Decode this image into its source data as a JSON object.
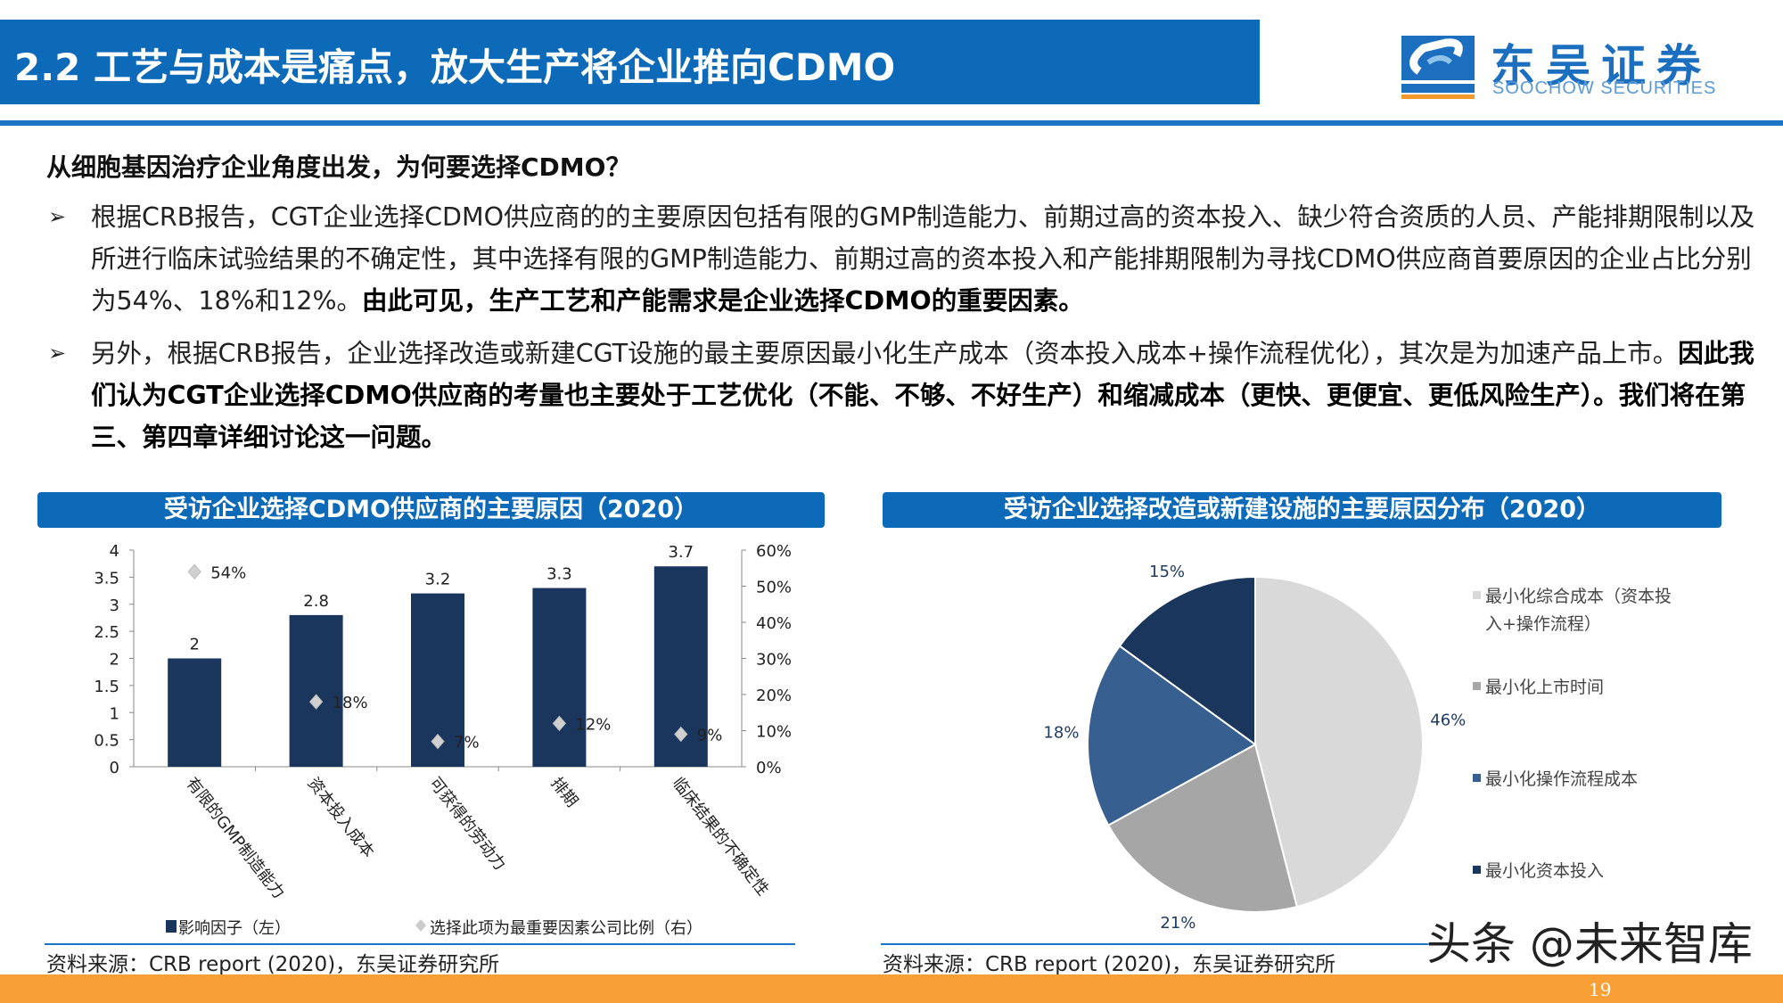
{
  "header": {
    "title": "2.2 工艺与成本是痛点，放大生产将企业推向CDMO",
    "logo_cn": "东吴证券",
    "logo_en": "SOOCHOW SECURITIES",
    "logo_mark": "SCS"
  },
  "question": "从细胞基因治疗企业角度出发，为何要选择CDMO？",
  "bullets": [
    {
      "normal": "根据CRB报告，CGT企业选择CDMO供应商的的主要原因包括有限的GMP制造能力、前期过高的资本投入、缺少符合资质的人员、产能排期限制以及所进行临床试验结果的不确定性，其中选择有限的GMP制造能力、前期过高的资本投入和产能排期限制为寻找CDMO供应商首要原因的企业占比分别为54%、18%和12%。",
      "bold": "由此可见，生产工艺和产能需求是企业选择CDMO的重要因素。"
    },
    {
      "normal": "另外，根据CRB报告，企业选择改造或新建CGT设施的最主要原因最小化生产成本（资本投入成本+操作流程优化），其次是为加速产品上市。",
      "bold": "因此我们认为CGT企业选择CDMO供应商的考量也主要处于工艺优化（不能、不够、不好生产）和缩减成本（更快、更便宜、更低风险生产）。我们将在第三、第四章详细讨论这一问题。"
    }
  ],
  "chart_data": [
    {
      "type": "bar",
      "title": "受访企业选择CDMO供应商的主要原因（2020）",
      "categories": [
        "有限的GMP制造能力",
        "资本投入成本",
        "可获得的劳动力",
        "排期",
        "临床结果的不确定性"
      ],
      "series": [
        {
          "name": "影响因子（左）",
          "axis": "left",
          "values": [
            2,
            2.8,
            3.2,
            3.3,
            3.7
          ],
          "labels": [
            "2",
            "2.8",
            "3.2",
            "3.3",
            "3.7"
          ],
          "color": "#1b365d"
        },
        {
          "name": "选择此项为最重要因素公司比例（右）",
          "axis": "right",
          "values": [
            54,
            18,
            7,
            12,
            9
          ],
          "labels": [
            "54%",
            "18%",
            "7%",
            "12%",
            "9%"
          ],
          "color": "#d0d0d0"
        }
      ],
      "ylim": [
        0,
        4
      ],
      "yticks": [
        "0",
        "0.5",
        "1",
        "1.5",
        "2",
        "2.5",
        "3",
        "3.5",
        "4"
      ],
      "y2lim": [
        0,
        60
      ],
      "y2ticks": [
        "0%",
        "10%",
        "20%",
        "30%",
        "40%",
        "50%",
        "60%"
      ],
      "source": "资料来源：CRB report (2020)，东吴证券研究所"
    },
    {
      "type": "pie",
      "title": "受访企业选择改造或新建设施的主要原因分布（2020）",
      "slices": [
        {
          "label": "最小化综合成本（资本投入+操作流程）",
          "legend_lines": [
            "最小化综合成本（资本投",
            "入+操作流程）"
          ],
          "value": 46,
          "text": "46%",
          "color": "#d9d9d9"
        },
        {
          "label": "最小化上市时间",
          "legend_lines": [
            "最小化上市时间"
          ],
          "value": 21,
          "text": "21%",
          "color": "#a6a6a6"
        },
        {
          "label": "最小化操作流程成本",
          "legend_lines": [
            "最小化操作流程成本"
          ],
          "value": 18,
          "text": "18%",
          "color": "#375f8f"
        },
        {
          "label": "最小化资本投入",
          "legend_lines": [
            "最小化资本投入"
          ],
          "value": 15,
          "text": "15%",
          "color": "#1b365d"
        }
      ],
      "source": "资料来源：CRB report (2020)，东吴证券研究所"
    }
  ],
  "watermark": "头条 @未来智库",
  "page_number": "19"
}
